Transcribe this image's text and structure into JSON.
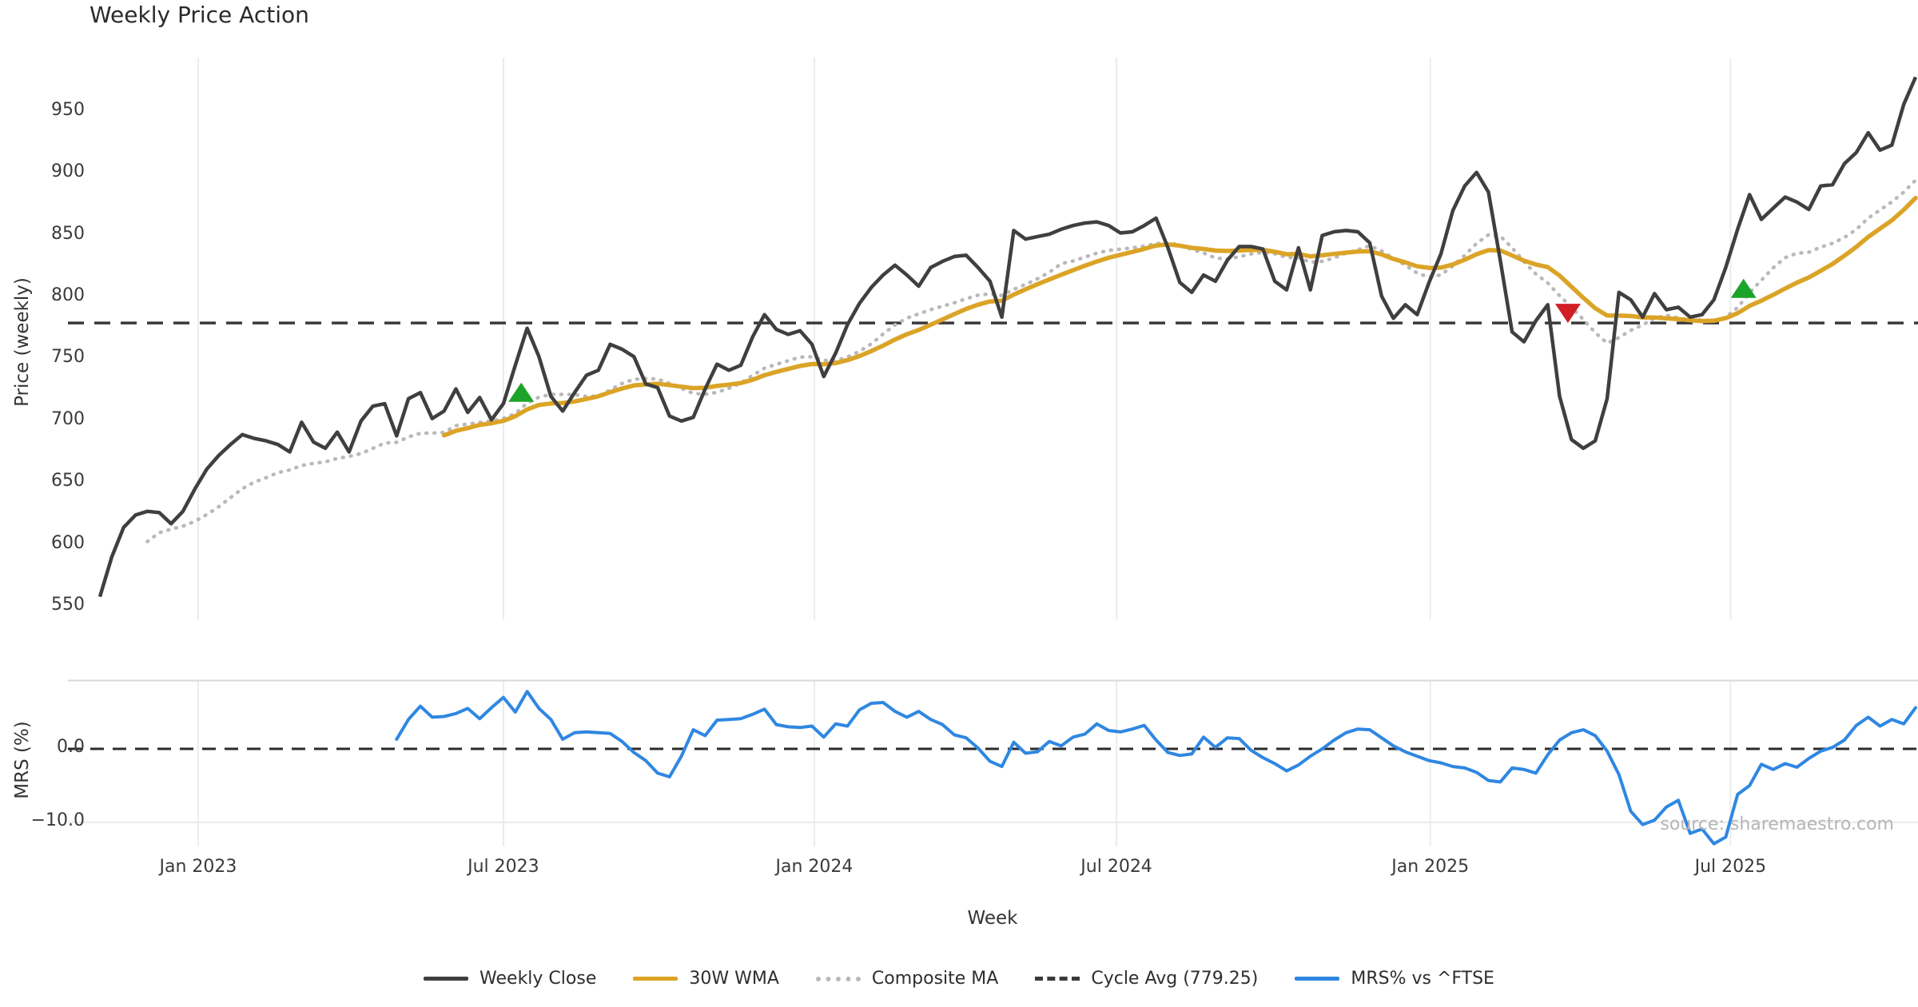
{
  "title": "Weekly Price Action",
  "xlabel": "Week",
  "source": "source: sharemaestro.com",
  "legend": [
    {
      "label": "Weekly Close",
      "color": "#3f3f3f",
      "style": "solid"
    },
    {
      "label": "30W WMA",
      "color": "#dba427",
      "style": "solid"
    },
    {
      "label": "Composite MA",
      "color": "#b9b9b9",
      "style": "dotted"
    },
    {
      "label": "Cycle Avg (779.25)",
      "color": "#3a3a3a",
      "style": "dashed"
    },
    {
      "label": "MRS% vs ^FTSE",
      "color": "#2f87e1",
      "style": "solid"
    }
  ],
  "price_panel": {
    "ylabel": "Price (weekly)",
    "y_ticks": [
      550,
      600,
      650,
      700,
      750,
      800,
      850,
      900,
      950
    ]
  },
  "mrs_panel": {
    "ylabel": "MRS (%)",
    "y_ticks": [
      {
        "label": "0.0",
        "value": 0
      },
      {
        "label": "−10.0",
        "value": -10
      }
    ]
  },
  "chart_data": [
    {
      "type": "line",
      "panel": "price",
      "title": "Weekly Price Action",
      "xlabel": "Week",
      "ylabel": "Price (weekly)",
      "ylim": [
        543,
        994
      ],
      "x_unit": "week_index",
      "grid": "vertical-only",
      "legend_position": "bottom-center",
      "x_ticks": [
        {
          "label": "Jan 2023",
          "week": 8.28
        },
        {
          "label": "Jul 2023",
          "week": 34.0
        },
        {
          "label": "Jan 2024",
          "week": 60.2
        },
        {
          "label": "Jul 2024",
          "week": 85.66
        },
        {
          "label": "Jan 2025",
          "week": 112.1
        },
        {
          "label": "Jul 2025",
          "week": 137.4
        }
      ],
      "series": [
        {
          "name": "Weekly Close",
          "style": "solid",
          "color": "#3f3f3f",
          "width": 4.5,
          "week_start": 0,
          "values": [
            558,
            590,
            614,
            624,
            627,
            626,
            617,
            627,
            645,
            661,
            672,
            681,
            689,
            686,
            684,
            681,
            675,
            699,
            683,
            678,
            691,
            675,
            700,
            712,
            714,
            688,
            718,
            723,
            702,
            708,
            726,
            707,
            719,
            701,
            714,
            745,
            775,
            752,
            720,
            708,
            723,
            737,
            741,
            762,
            758,
            752,
            730,
            727,
            704,
            700,
            703,
            726,
            746,
            741,
            745,
            768,
            786,
            774,
            770,
            773,
            762,
            736,
            755,
            778,
            795,
            808,
            818,
            826,
            818,
            809,
            824,
            829,
            833,
            834,
            824,
            813,
            784,
            854,
            847,
            849,
            851,
            855,
            858,
            860,
            861,
            858,
            852,
            853,
            858,
            864,
            840,
            812,
            804,
            818,
            813,
            830,
            841,
            841,
            839,
            813,
            806,
            840,
            806,
            850,
            853,
            854,
            853,
            844,
            801,
            783,
            794,
            786,
            812,
            835,
            870,
            890,
            901,
            885,
            830,
            772,
            764,
            781,
            794,
            720,
            685,
            678,
            684,
            718,
            804,
            798,
            784,
            803,
            790,
            792,
            784,
            786,
            798,
            824,
            855,
            883,
            863,
            872,
            881,
            877,
            871,
            890,
            891,
            908,
            917,
            933,
            919,
            923,
            956,
            978
          ]
        },
        {
          "name": "30W WMA",
          "style": "solid",
          "color": "#dba427",
          "width": 5.5,
          "derived": "weighted_moving_average_30w_of_weekly_close"
        },
        {
          "name": "Composite MA",
          "style": "dotted",
          "color": "#b9b9b9",
          "width": 4.5,
          "derived": "mean_of_sma5_sma15_sma30_of_weekly_close"
        },
        {
          "name": "Cycle Avg (779.25)",
          "style": "dashed",
          "color": "#3a3a3a",
          "width": 3.5,
          "hline_value": 779.25
        }
      ],
      "markers": [
        {
          "type": "buy",
          "shape": "triangle-up",
          "color": "#1ca32a",
          "week": 35.5,
          "value": 722
        },
        {
          "type": "sell",
          "shape": "triangle-down",
          "color": "#d21f26",
          "week": 123.7,
          "value": 787
        },
        {
          "type": "buy",
          "shape": "triangle-up",
          "color": "#1ca32a",
          "week": 138.5,
          "value": 806
        }
      ]
    },
    {
      "type": "line",
      "panel": "mrs",
      "ylabel": "MRS (%)",
      "ylim": [
        -13.5,
        9.3
      ],
      "zero_line": {
        "style": "dashed",
        "color": "#2b2b2b",
        "value": 0
      },
      "y_ticks": [
        {
          "label": "0.0",
          "value": 0
        },
        {
          "label": "−10.0",
          "value": -10
        }
      ],
      "series": [
        {
          "name": "MRS% vs ^FTSE",
          "style": "solid",
          "color": "#2f87e1",
          "width": 4,
          "week_start": 25,
          "values": [
            1.3,
            4.0,
            5.8,
            4.3,
            4.4,
            4.8,
            5.5,
            4.1,
            5.6,
            7.0,
            5.0,
            7.8,
            5.5,
            4.0,
            1.3,
            2.2,
            2.3,
            2.2,
            2.1,
            1.0,
            -0.5,
            -1.6,
            -3.3,
            -3.8,
            -1.0,
            2.6,
            1.8,
            3.9,
            4.0,
            4.1,
            4.7,
            5.4,
            3.3,
            3.0,
            2.9,
            3.1,
            1.6,
            3.4,
            3.1,
            5.3,
            6.2,
            6.3,
            5.1,
            4.3,
            5.1,
            4.0,
            3.3,
            1.9,
            1.5,
            0.1,
            -1.7,
            -2.4,
            0.9,
            -0.6,
            -0.4,
            1.0,
            0.4,
            1.6,
            2.0,
            3.4,
            2.5,
            2.3,
            2.7,
            3.2,
            1.2,
            -0.5,
            -0.9,
            -0.7,
            1.6,
            0.2,
            1.5,
            1.4,
            -0.2,
            -1.2,
            -2.0,
            -3.0,
            -2.2,
            -1.0,
            0.0,
            1.2,
            2.2,
            2.7,
            2.6,
            1.5,
            0.4,
            -0.4,
            -1.0,
            -1.6,
            -1.9,
            -2.4,
            -2.6,
            -3.2,
            -4.3,
            -4.5,
            -2.6,
            -2.8,
            -3.3,
            -0.8,
            1.2,
            2.2,
            2.6,
            1.8,
            -0.3,
            -3.5,
            -8.5,
            -10.3,
            -9.7,
            -7.9,
            -7.0,
            -11.5,
            -10.9,
            -12.9,
            -12.0,
            -6.2,
            -5.0,
            -2.1,
            -2.8,
            -2.0,
            -2.5,
            -1.3,
            -0.3,
            0.2,
            1.2,
            3.2,
            4.3,
            3.1,
            4.0,
            3.4,
            5.6
          ]
        }
      ]
    }
  ]
}
